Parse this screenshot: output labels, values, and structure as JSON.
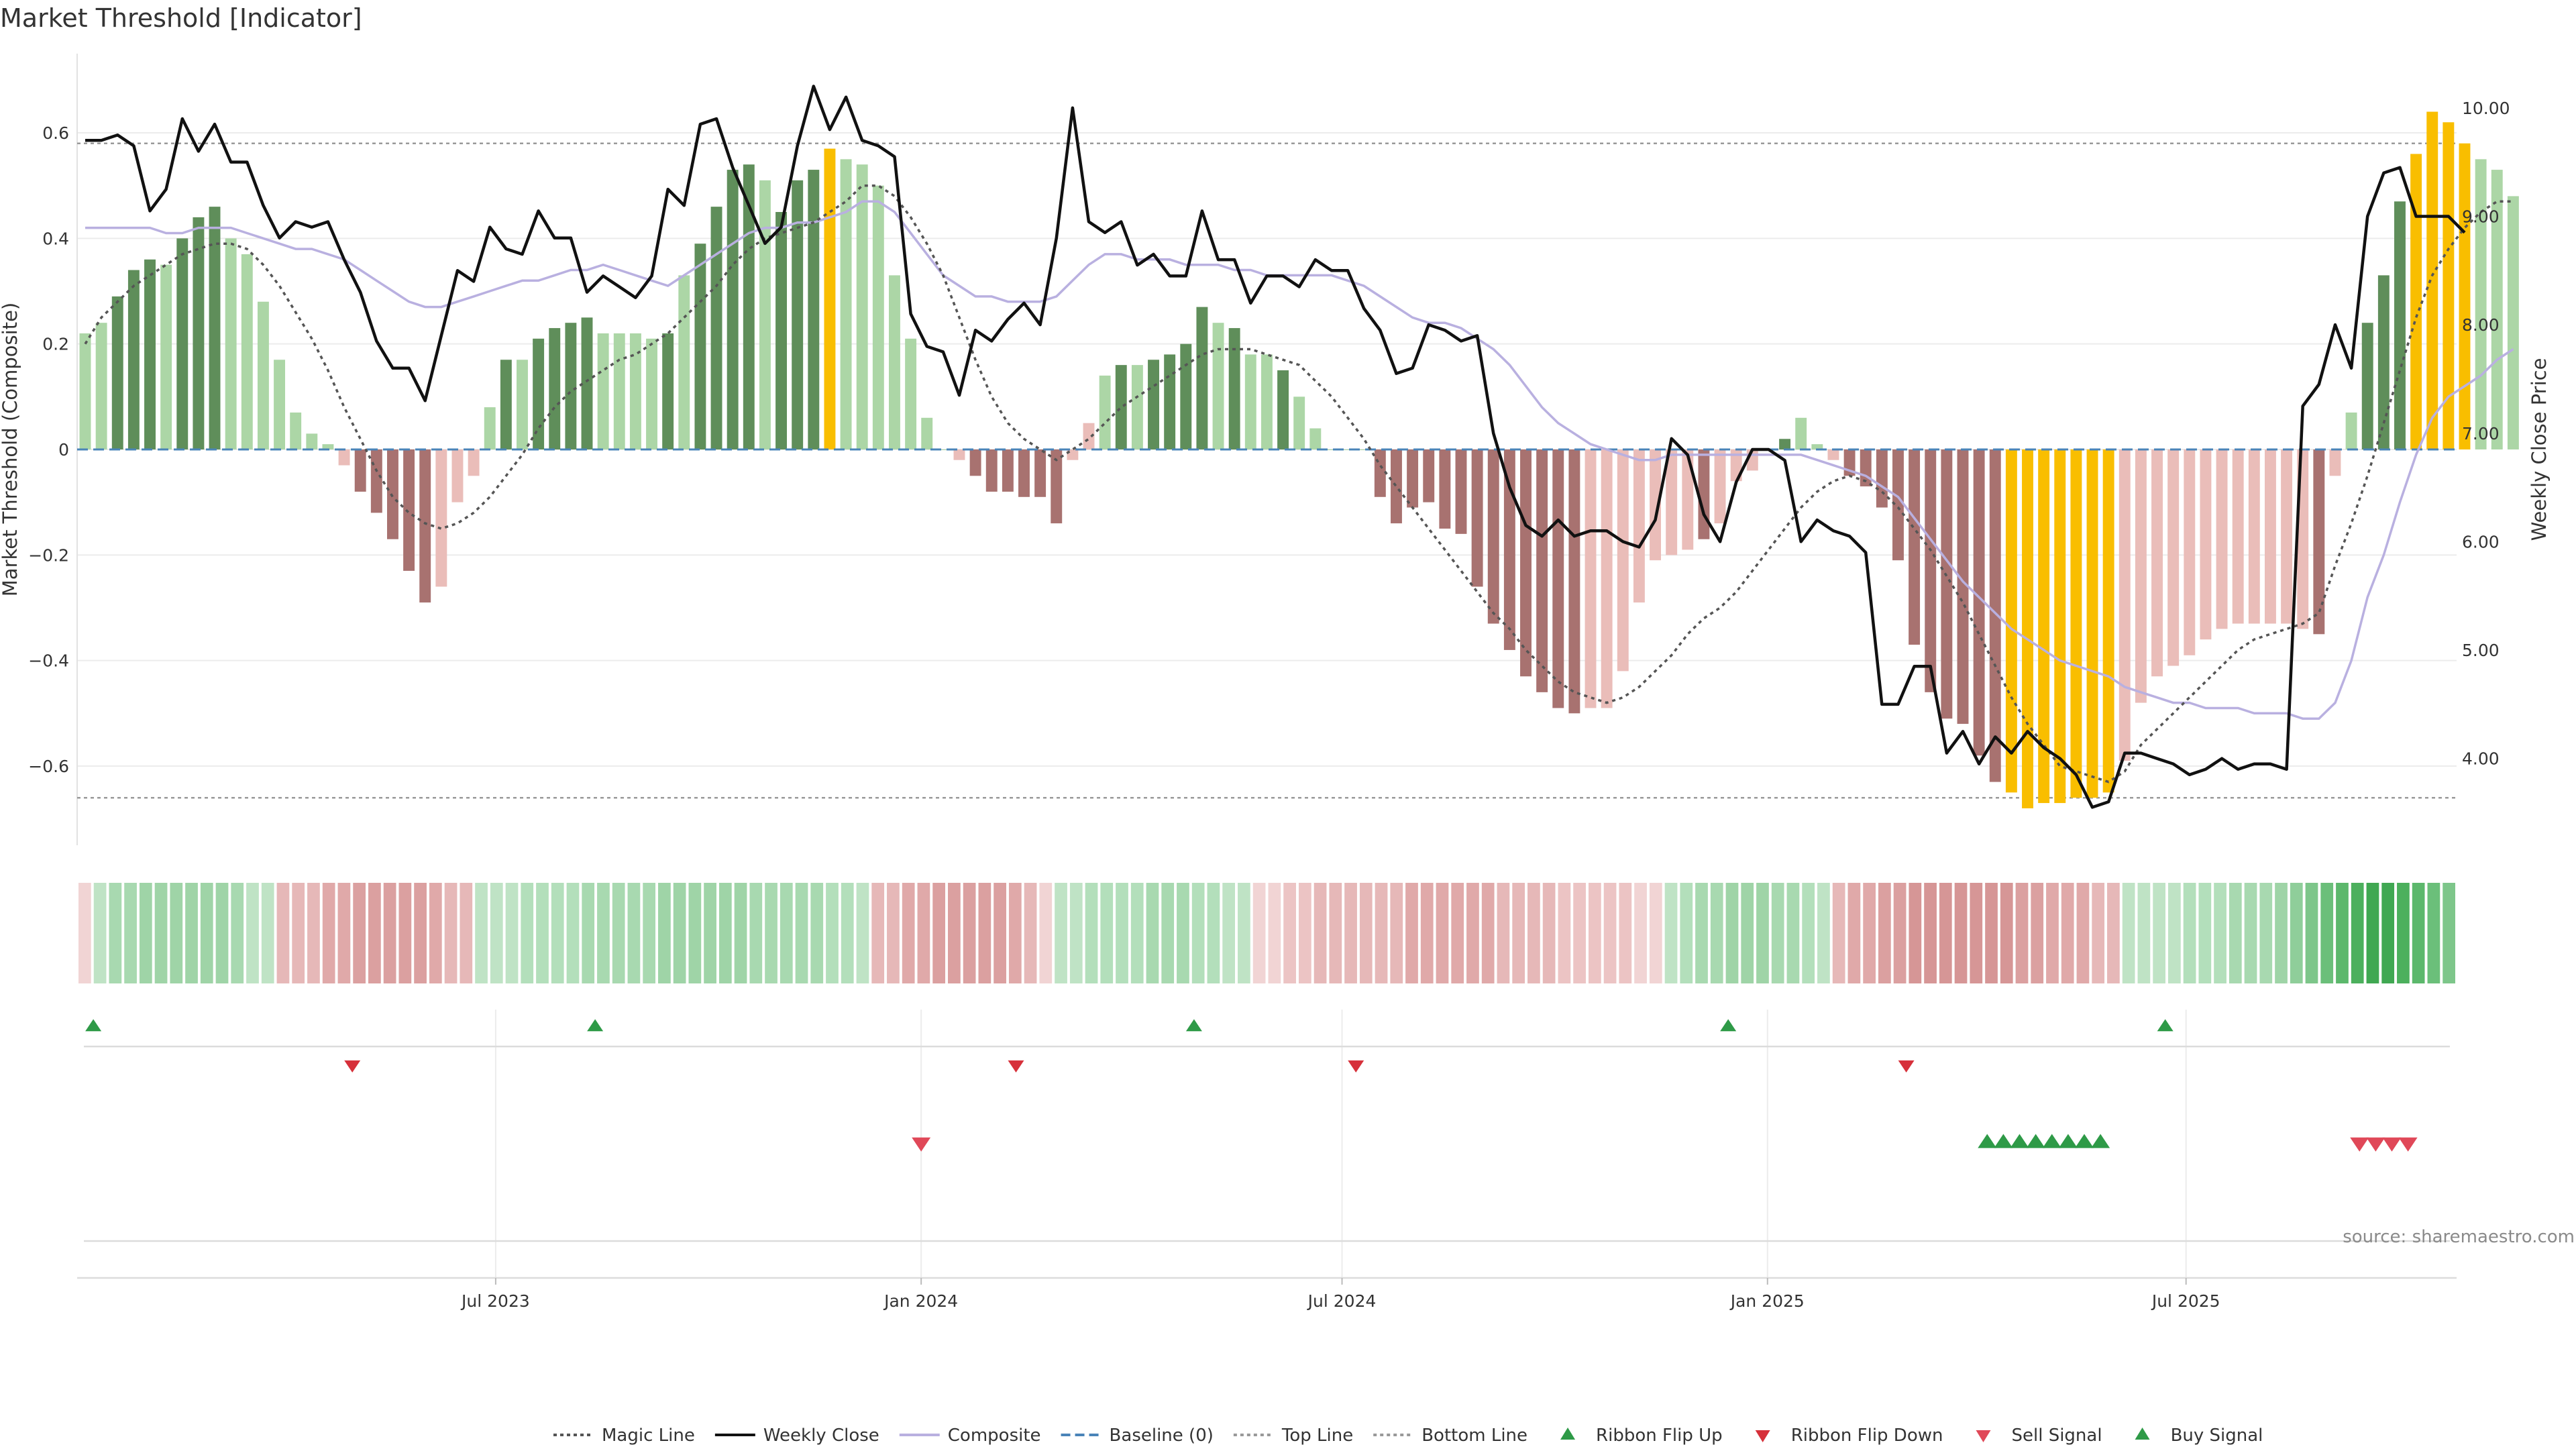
{
  "chart_data": {
    "type": "bar",
    "title": "Market Threshold [Indicator]",
    "source": "source: sharemaestro.com",
    "y_left": {
      "label": "Market Threshold (Composite)",
      "range": [
        -0.75,
        0.75
      ],
      "ticks": [
        -0.6,
        -0.4,
        -0.2,
        0,
        0.2,
        0.4,
        0.6
      ],
      "tick_labels": [
        "−0.6",
        "−0.4",
        "−0.2",
        "0",
        "0.2",
        "0.4",
        "0.6"
      ]
    },
    "y_right": {
      "label": "Weekly Close Price",
      "range": [
        3.2,
        10.5
      ],
      "ticks": [
        4,
        5,
        6,
        7,
        8,
        9,
        10
      ],
      "tick_labels": [
        "4.00",
        "5.00",
        "6.00",
        "7.00",
        "8.00",
        "9.00",
        "10.00"
      ]
    },
    "x_axis": {
      "start_date": "2023-01-01",
      "end_date": "2025-10-26",
      "ticks": [
        {
          "date": "2023-07-01",
          "label": "Jul 2023"
        },
        {
          "date": "2024-01-01",
          "label": "Jan 2024"
        },
        {
          "date": "2024-07-01",
          "label": "Jul 2024"
        },
        {
          "date": "2025-01-01",
          "label": "Jan 2025"
        },
        {
          "date": "2025-07-01",
          "label": "Jul 2025"
        }
      ]
    },
    "reference_lines": {
      "top_line": 0.58,
      "bottom_line": -0.66,
      "baseline": 0
    },
    "weeks": {
      "start": "2023-01-01",
      "composite_bars": [
        0.22,
        0.24,
        0.29,
        0.34,
        0.36,
        0.35,
        0.4,
        0.44,
        0.46,
        0.4,
        0.37,
        0.28,
        0.17,
        0.07,
        0.03,
        0.01,
        -0.03,
        -0.08,
        -0.12,
        -0.17,
        -0.23,
        -0.29,
        -0.26,
        -0.1,
        -0.05,
        0.08,
        0.17,
        0.17,
        0.21,
        0.23,
        0.24,
        0.25,
        0.22,
        0.22,
        0.22,
        0.21,
        0.22,
        0.33,
        0.39,
        0.46,
        0.53,
        0.54,
        0.51,
        0.45,
        0.51,
        0.53,
        0.57,
        0.55,
        0.54,
        0.5,
        0.33,
        0.21,
        0.06,
        0.0,
        -0.02,
        -0.05,
        -0.08,
        -0.08,
        -0.09,
        -0.09,
        -0.14,
        -0.02,
        0.05,
        0.14,
        0.16,
        0.16,
        0.17,
        0.18,
        0.2,
        0.27,
        0.24,
        0.23,
        0.18,
        0.18,
        0.15,
        0.1,
        0.04,
        0.0,
        0.0,
        0.0,
        -0.09,
        -0.14,
        -0.11,
        -0.1,
        -0.15,
        -0.16,
        -0.26,
        -0.33,
        -0.38,
        -0.43,
        -0.46,
        -0.49,
        -0.5,
        -0.49,
        -0.49,
        -0.42,
        -0.29,
        -0.21,
        -0.2,
        -0.19,
        -0.17,
        -0.14,
        -0.06,
        -0.04,
        0.0,
        0.02,
        0.06,
        0.01,
        -0.02,
        -0.05,
        -0.07,
        -0.11,
        -0.21,
        -0.37,
        -0.46,
        -0.51,
        -0.52,
        -0.58,
        -0.63,
        -0.65,
        -0.68,
        -0.67,
        -0.67,
        -0.66,
        -0.66,
        -0.65,
        -0.59,
        -0.48,
        -0.43,
        -0.41,
        -0.39,
        -0.36,
        -0.34,
        -0.33,
        -0.33,
        -0.33,
        -0.33,
        -0.34,
        -0.35,
        -0.05,
        0.07,
        0.24,
        0.33,
        0.47,
        0.56,
        0.64,
        0.62,
        0.58,
        0.55,
        0.53,
        0.48
      ],
      "bar_colors": [
        "lg",
        "lg",
        "dg",
        "dg",
        "dg",
        "lg",
        "dg",
        "dg",
        "dg",
        "lg",
        "lg",
        "lg",
        "lg",
        "lg",
        "lg",
        "lg",
        "lr",
        "dr",
        "dr",
        "dr",
        "dr",
        "dr",
        "lr",
        "lr",
        "lr",
        "lg",
        "dg",
        "lg",
        "dg",
        "dg",
        "dg",
        "dg",
        "lg",
        "lg",
        "lg",
        "lg",
        "dg",
        "lg",
        "dg",
        "dg",
        "dg",
        "dg",
        "lg",
        "dg",
        "dg",
        "dg",
        "gold",
        "lg",
        "lg",
        "lg",
        "lg",
        "lg",
        "lg",
        "lg",
        "lr",
        "dr",
        "dr",
        "dr",
        "dr",
        "dr",
        "dr",
        "lr",
        "lr",
        "lg",
        "dg",
        "lg",
        "dg",
        "dg",
        "dg",
        "dg",
        "lg",
        "dg",
        "lg",
        "lg",
        "dg",
        "lg",
        "lg",
        "lg",
        "lg",
        "lg",
        "dr",
        "dr",
        "dr",
        "dr",
        "dr",
        "dr",
        "dr",
        "dr",
        "dr",
        "dr",
        "dr",
        "dr",
        "dr",
        "lr",
        "lr",
        "lr",
        "lr",
        "lr",
        "lr",
        "lr",
        "dr",
        "lr",
        "lr",
        "lr",
        "lr",
        "dg",
        "lg",
        "lg",
        "lr",
        "dr",
        "dr",
        "dr",
        "dr",
        "dr",
        "dr",
        "dr",
        "dr",
        "dr",
        "dr",
        "gold",
        "gold",
        "gold",
        "gold",
        "gold",
        "gold",
        "gold",
        "lr",
        "lr",
        "lr",
        "lr",
        "lr",
        "lr",
        "lr",
        "lr",
        "lr",
        "lr",
        "lr",
        "lr",
        "dr",
        "lr",
        "lg",
        "dg",
        "dg",
        "dg",
        "gold",
        "gold",
        "gold",
        "gold",
        "lg",
        "lg",
        "lg"
      ],
      "magic_line": [
        0.2,
        0.25,
        0.28,
        0.31,
        0.33,
        0.35,
        0.37,
        0.38,
        0.39,
        0.39,
        0.38,
        0.35,
        0.31,
        0.26,
        0.21,
        0.15,
        0.08,
        0.02,
        -0.04,
        -0.09,
        -0.12,
        -0.14,
        -0.15,
        -0.14,
        -0.12,
        -0.09,
        -0.05,
        -0.01,
        0.04,
        0.08,
        0.11,
        0.13,
        0.15,
        0.17,
        0.18,
        0.2,
        0.22,
        0.25,
        0.28,
        0.31,
        0.35,
        0.38,
        0.4,
        0.41,
        0.42,
        0.43,
        0.45,
        0.47,
        0.5,
        0.5,
        0.48,
        0.44,
        0.39,
        0.33,
        0.25,
        0.17,
        0.1,
        0.05,
        0.02,
        0.0,
        -0.02,
        0.0,
        0.02,
        0.05,
        0.08,
        0.1,
        0.12,
        0.14,
        0.16,
        0.18,
        0.19,
        0.19,
        0.19,
        0.18,
        0.17,
        0.16,
        0.13,
        0.1,
        0.06,
        0.02,
        -0.03,
        -0.07,
        -0.11,
        -0.15,
        -0.19,
        -0.23,
        -0.27,
        -0.31,
        -0.34,
        -0.38,
        -0.41,
        -0.44,
        -0.46,
        -0.47,
        -0.48,
        -0.47,
        -0.45,
        -0.42,
        -0.39,
        -0.35,
        -0.32,
        -0.3,
        -0.27,
        -0.23,
        -0.19,
        -0.15,
        -0.11,
        -0.08,
        -0.06,
        -0.05,
        -0.06,
        -0.08,
        -0.11,
        -0.15,
        -0.19,
        -0.24,
        -0.29,
        -0.35,
        -0.41,
        -0.47,
        -0.52,
        -0.56,
        -0.6,
        -0.61,
        -0.62,
        -0.63,
        -0.61,
        -0.56,
        -0.53,
        -0.5,
        -0.47,
        -0.44,
        -0.41,
        -0.38,
        -0.36,
        -0.35,
        -0.34,
        -0.33,
        -0.31,
        -0.22,
        -0.14,
        -0.05,
        0.05,
        0.15,
        0.25,
        0.33,
        0.38,
        0.42,
        0.45,
        0.47,
        0.47
      ],
      "composite_line": [
        0.42,
        0.42,
        0.42,
        0.42,
        0.42,
        0.41,
        0.41,
        0.42,
        0.42,
        0.42,
        0.41,
        0.4,
        0.39,
        0.38,
        0.38,
        0.37,
        0.36,
        0.34,
        0.32,
        0.3,
        0.28,
        0.27,
        0.27,
        0.28,
        0.29,
        0.3,
        0.31,
        0.32,
        0.32,
        0.33,
        0.34,
        0.34,
        0.35,
        0.34,
        0.33,
        0.32,
        0.31,
        0.33,
        0.35,
        0.37,
        0.39,
        0.41,
        0.42,
        0.42,
        0.43,
        0.43,
        0.44,
        0.45,
        0.47,
        0.47,
        0.45,
        0.41,
        0.37,
        0.33,
        0.31,
        0.29,
        0.29,
        0.28,
        0.28,
        0.28,
        0.29,
        0.32,
        0.35,
        0.37,
        0.37,
        0.36,
        0.36,
        0.36,
        0.35,
        0.35,
        0.35,
        0.34,
        0.34,
        0.33,
        0.33,
        0.33,
        0.33,
        0.33,
        0.32,
        0.31,
        0.29,
        0.27,
        0.25,
        0.24,
        0.24,
        0.23,
        0.21,
        0.19,
        0.16,
        0.12,
        0.08,
        0.05,
        0.03,
        0.01,
        0.0,
        -0.01,
        -0.02,
        -0.02,
        -0.01,
        -0.01,
        -0.01,
        -0.01,
        -0.01,
        -0.01,
        -0.01,
        -0.01,
        -0.01,
        -0.02,
        -0.03,
        -0.04,
        -0.05,
        -0.07,
        -0.09,
        -0.13,
        -0.17,
        -0.21,
        -0.25,
        -0.28,
        -0.31,
        -0.34,
        -0.36,
        -0.38,
        -0.4,
        -0.41,
        -0.42,
        -0.43,
        -0.45,
        -0.46,
        -0.47,
        -0.48,
        -0.48,
        -0.49,
        -0.49,
        -0.49,
        -0.5,
        -0.5,
        -0.5,
        -0.51,
        -0.51,
        -0.48,
        -0.4,
        -0.28,
        -0.2,
        -0.1,
        -0.01,
        0.06,
        0.1,
        0.12,
        0.14,
        0.17,
        0.19
      ],
      "weekly_close": [
        9.7,
        9.7,
        9.75,
        9.65,
        9.05,
        9.25,
        9.9,
        9.6,
        9.85,
        9.5,
        9.5,
        9.1,
        8.8,
        8.95,
        8.9,
        8.95,
        8.6,
        8.3,
        7.85,
        7.6,
        7.6,
        7.3,
        7.9,
        8.5,
        8.4,
        8.9,
        8.7,
        8.65,
        9.05,
        8.8,
        8.8,
        8.3,
        8.45,
        8.35,
        8.25,
        8.45,
        9.25,
        9.1,
        9.85,
        9.9,
        9.45,
        9.1,
        8.75,
        8.9,
        9.65,
        10.2,
        9.8,
        10.1,
        9.7,
        9.65,
        9.55,
        8.1,
        7.8,
        7.75,
        7.35,
        7.95,
        7.85,
        8.05,
        8.2,
        8.0,
        8.8,
        10.0,
        8.95,
        8.85,
        8.95,
        8.55,
        8.65,
        8.45,
        8.45,
        9.05,
        8.6,
        8.6,
        8.2,
        8.45,
        8.45,
        8.35,
        8.6,
        8.5,
        8.5,
        8.15,
        7.95,
        7.55,
        7.6,
        8.0,
        7.95,
        7.85,
        7.9,
        7.0,
        6.5,
        6.15,
        6.05,
        6.2,
        6.05,
        6.1,
        6.1,
        6.0,
        5.95,
        6.2,
        6.95,
        6.8,
        6.25,
        6.0,
        6.55,
        6.85,
        6.85,
        6.75,
        6.0,
        6.2,
        6.1,
        6.05,
        5.9,
        4.5,
        4.5,
        4.85,
        4.85,
        4.05,
        4.25,
        3.95,
        4.2,
        4.05,
        4.25,
        4.1,
        4.0,
        3.85,
        3.55,
        3.6,
        4.05,
        4.05,
        4.0,
        3.95,
        3.85,
        3.9,
        4.0,
        3.9,
        3.95,
        3.95,
        3.9,
        7.25,
        7.45,
        8.0,
        7.6,
        9.0,
        9.4,
        9.45,
        9.0,
        9.0,
        9.0,
        8.85
      ]
    },
    "ribbon_colors": [
      "#f1d4d4",
      "#bfe3c5",
      "#a8d9b0",
      "#a8d9b0",
      "#9fd4a7",
      "#9fd4a7",
      "#9fd4a7",
      "#9fd4a7",
      "#9fd4a7",
      "#9fd4a7",
      "#a8d9b0",
      "#bfe3c5",
      "#bfe3c5",
      "#e6b8b8",
      "#e6b8b8",
      "#e6b8b8",
      "#e0a9a9",
      "#e0a9a9",
      "#dba0a0",
      "#dba0a0",
      "#dba0a0",
      "#dba0a0",
      "#dba0a0",
      "#e0a9a9",
      "#e6b8b8",
      "#e6b8b8",
      "#bfe3c5",
      "#bfe3c5",
      "#bfe3c5",
      "#b3dfbb",
      "#b3dfbb",
      "#b3dfbb",
      "#b3dfbb",
      "#a8d9b0",
      "#a8d9b0",
      "#a8d9b0",
      "#a8d9b0",
      "#a8d9b0",
      "#9fd4a7",
      "#9fd4a7",
      "#9fd4a7",
      "#9fd4a7",
      "#9fd4a7",
      "#9fd4a7",
      "#a8d9b0",
      "#a8d9b0",
      "#a8d9b0",
      "#a8d9b0",
      "#a8d9b0",
      "#b3dfbb",
      "#b3dfbb",
      "#bfe3c5",
      "#e6b8b8",
      "#e6b8b8",
      "#e0a9a9",
      "#e0a9a9",
      "#dba0a0",
      "#dba0a0",
      "#dba0a0",
      "#dba0a0",
      "#dba0a0",
      "#e0a9a9",
      "#e6b8b8",
      "#f1d4d4",
      "#bfe3c5",
      "#bfe3c5",
      "#b3dfbb",
      "#b3dfbb",
      "#b3dfbb",
      "#b3dfbb",
      "#a8d9b0",
      "#a8d9b0",
      "#a8d9b0",
      "#b3dfbb",
      "#b3dfbb",
      "#bfe3c5",
      "#bfe3c5",
      "#f1d4d4",
      "#f1d4d4",
      "#ecc4c4",
      "#ecc4c4",
      "#e6b8b8",
      "#e6b8b8",
      "#e6b8b8",
      "#e6b8b8",
      "#e6b8b8",
      "#e6b8b8",
      "#e0a9a9",
      "#e0a9a9",
      "#e0a9a9",
      "#e0a9a9",
      "#e0a9a9",
      "#e0a9a9",
      "#e6b8b8",
      "#e6b8b8",
      "#e6b8b8",
      "#e6b8b8",
      "#ecc4c4",
      "#ecc4c4",
      "#ecc4c4",
      "#ecc4c4",
      "#ecc4c4",
      "#f1d4d4",
      "#f1d4d4",
      "#bfe3c5",
      "#b3dfbb",
      "#a8d9b0",
      "#a8d9b0",
      "#9fd4a7",
      "#9fd4a7",
      "#9fd4a7",
      "#a8d9b0",
      "#a8d9b0",
      "#b3dfbb",
      "#bfe3c5",
      "#e6b8b8",
      "#e0a9a9",
      "#e0a9a9",
      "#dba0a0",
      "#dba0a0",
      "#d69696",
      "#d69696",
      "#d69696",
      "#d69696",
      "#d69696",
      "#d69696",
      "#d69696",
      "#dba0a0",
      "#dba0a0",
      "#e0a9a9",
      "#e0a9a9",
      "#e0a9a9",
      "#e6b8b8",
      "#e6b8b8",
      "#bfe3c5",
      "#bfe3c5",
      "#bfe3c5",
      "#bfe3c5",
      "#b3dfbb",
      "#b3dfbb",
      "#b3dfbb",
      "#a8d9b0",
      "#a8d9b0",
      "#a8d9b0",
      "#9fd4a7",
      "#8fce9a",
      "#7dc68a",
      "#6bbf7a",
      "#5cb86c",
      "#4cb05d",
      "#40a852",
      "#40a852",
      "#4cb05d",
      "#5cb86c",
      "#6bbf7a",
      "#7dc68a"
    ],
    "ribbon_flip_up_dates": [
      "2023-01-08",
      "2023-08-13",
      "2024-04-28",
      "2024-12-15",
      "2025-06-22"
    ],
    "ribbon_flip_down_dates": [
      "2023-04-30",
      "2024-02-11",
      "2024-07-07",
      "2025-03-02"
    ],
    "sell_signal_dates": [
      "2024-01-01",
      "2025-09-14",
      "2025-09-21",
      "2025-09-28",
      "2025-10-05"
    ],
    "buy_signal_dates": [
      "2025-04-06",
      "2025-04-13",
      "2025-04-20",
      "2025-04-27",
      "2025-05-04",
      "2025-05-11",
      "2025-05-18",
      "2025-05-25"
    ],
    "legend": [
      {
        "label": "Magic Line",
        "kind": "line",
        "color": "#555555",
        "dash": "dotted"
      },
      {
        "label": "Weekly Close",
        "kind": "line",
        "color": "#111111",
        "dash": "solid"
      },
      {
        "label": "Composite",
        "kind": "line",
        "color": "#b9b0e0",
        "dash": "solid"
      },
      {
        "label": "Baseline (0)",
        "kind": "line",
        "color": "#4a84b8",
        "dash": "dashed"
      },
      {
        "label": "Top Line",
        "kind": "line",
        "color": "#999999",
        "dash": "dotted"
      },
      {
        "label": "Bottom Line",
        "kind": "line",
        "color": "#999999",
        "dash": "dotted"
      },
      {
        "label": "Ribbon Flip Up",
        "kind": "tri-up",
        "color": "#2e9a47"
      },
      {
        "label": "Ribbon Flip Down",
        "kind": "tri-down",
        "color": "#d6303a"
      },
      {
        "label": "Sell Signal",
        "kind": "tri-down",
        "color": "#e04858"
      },
      {
        "label": "Buy Signal",
        "kind": "tri-up",
        "color": "#2e9a47"
      }
    ],
    "colors": {
      "bar_dark_green": "#5f8e5a",
      "bar_light_green": "#acd6a6",
      "bar_dark_red": "#a87270",
      "bar_light_red": "#eabdb9",
      "bar_gold": "#f9be00"
    }
  }
}
